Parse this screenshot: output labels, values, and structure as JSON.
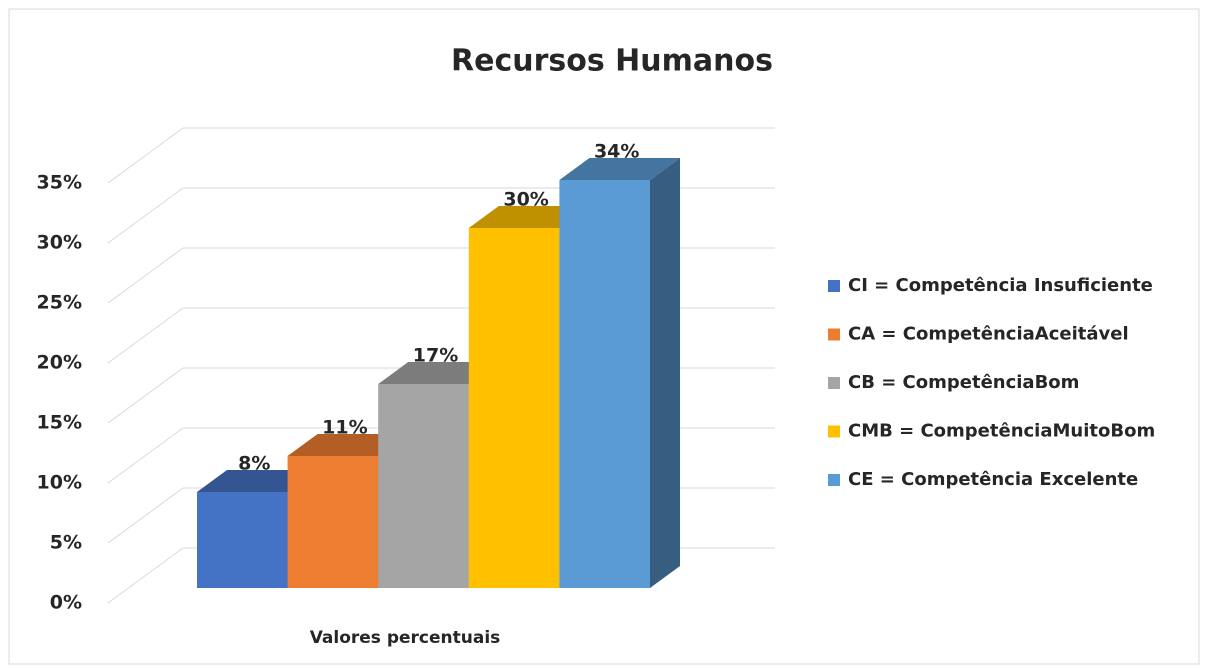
{
  "chart_data": {
    "type": "bar3d",
    "title": "Recursos Humanos",
    "categories": [
      "Valores percentuais"
    ],
    "series": [
      {
        "name": "CI = Competência Insuficiente",
        "color": "#4472c4",
        "values": [
          8
        ],
        "value_labels": [
          "8%"
        ]
      },
      {
        "name": "CA = CompetênciaAceitável",
        "color": "#ed7d31",
        "values": [
          11
        ],
        "value_labels": [
          "11%"
        ]
      },
      {
        "name": "CB = CompetênciaBom",
        "color": "#a5a5a5",
        "values": [
          17
        ],
        "value_labels": [
          "17%"
        ]
      },
      {
        "name": "CMB = CompetênciaMuitoBom",
        "color": "#ffc000",
        "values": [
          30
        ],
        "value_labels": [
          "30%"
        ]
      },
      {
        "name": "CE = Competência Excelente",
        "color": "#5b9bd5",
        "values": [
          34
        ],
        "value_labels": [
          "34%"
        ]
      }
    ],
    "ylim": [
      0,
      35
    ],
    "yticks": [
      {
        "value": 0,
        "label": "0%"
      },
      {
        "value": 5,
        "label": "5%"
      },
      {
        "value": 10,
        "label": "10%"
      },
      {
        "value": 15,
        "label": "15%"
      },
      {
        "value": 20,
        "label": "20%"
      },
      {
        "value": 25,
        "label": "25%"
      },
      {
        "value": 30,
        "label": "30%"
      },
      {
        "value": 35,
        "label": "35%"
      }
    ],
    "grid": true,
    "legend": "right"
  }
}
